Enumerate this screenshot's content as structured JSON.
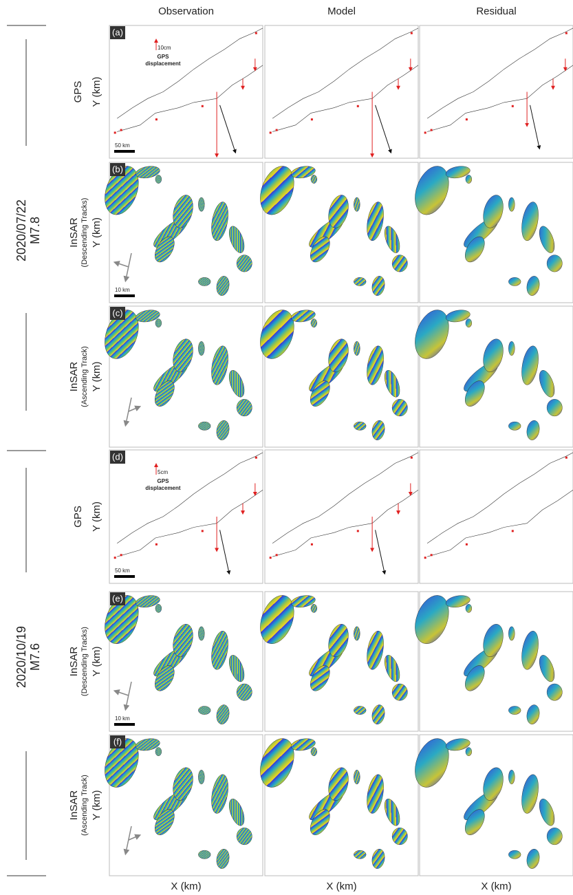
{
  "columns": [
    "Observation",
    "Model",
    "Residual"
  ],
  "x_label": "X (km)",
  "events": [
    {
      "date": "2020/07/22",
      "magnitude": "M7.8",
      "rows": [
        {
          "panel": "(a)",
          "label": "GPS",
          "y_label": "Y (km)",
          "scale_bar": "50 km",
          "gps_scale": "10cm",
          "gps_legend": [
            "GPS",
            "displacement"
          ]
        },
        {
          "panel": "(b)",
          "label": "InSAR",
          "sublabel": "(Descending Tracks)",
          "y_label": "Y (km)",
          "scale_bar": "10 km"
        },
        {
          "panel": "(c)",
          "label": "InSAR",
          "sublabel": "(Ascending Track)",
          "y_label": "Y (km)"
        }
      ]
    },
    {
      "date": "2020/10/19",
      "magnitude": "M7.6",
      "rows": [
        {
          "panel": "(d)",
          "label": "GPS",
          "y_label": "Y (km)",
          "scale_bar": "50 km",
          "gps_scale": "5cm",
          "gps_legend": [
            "GPS",
            "displacement"
          ]
        },
        {
          "panel": "(e)",
          "label": "InSAR",
          "sublabel": "(Descending Tracks)",
          "y_label": "Y (km)",
          "scale_bar": "10 km"
        },
        {
          "panel": "(f)",
          "label": "InSAR",
          "sublabel": "(Ascending Track)",
          "y_label": "Y (km)"
        }
      ]
    }
  ]
}
